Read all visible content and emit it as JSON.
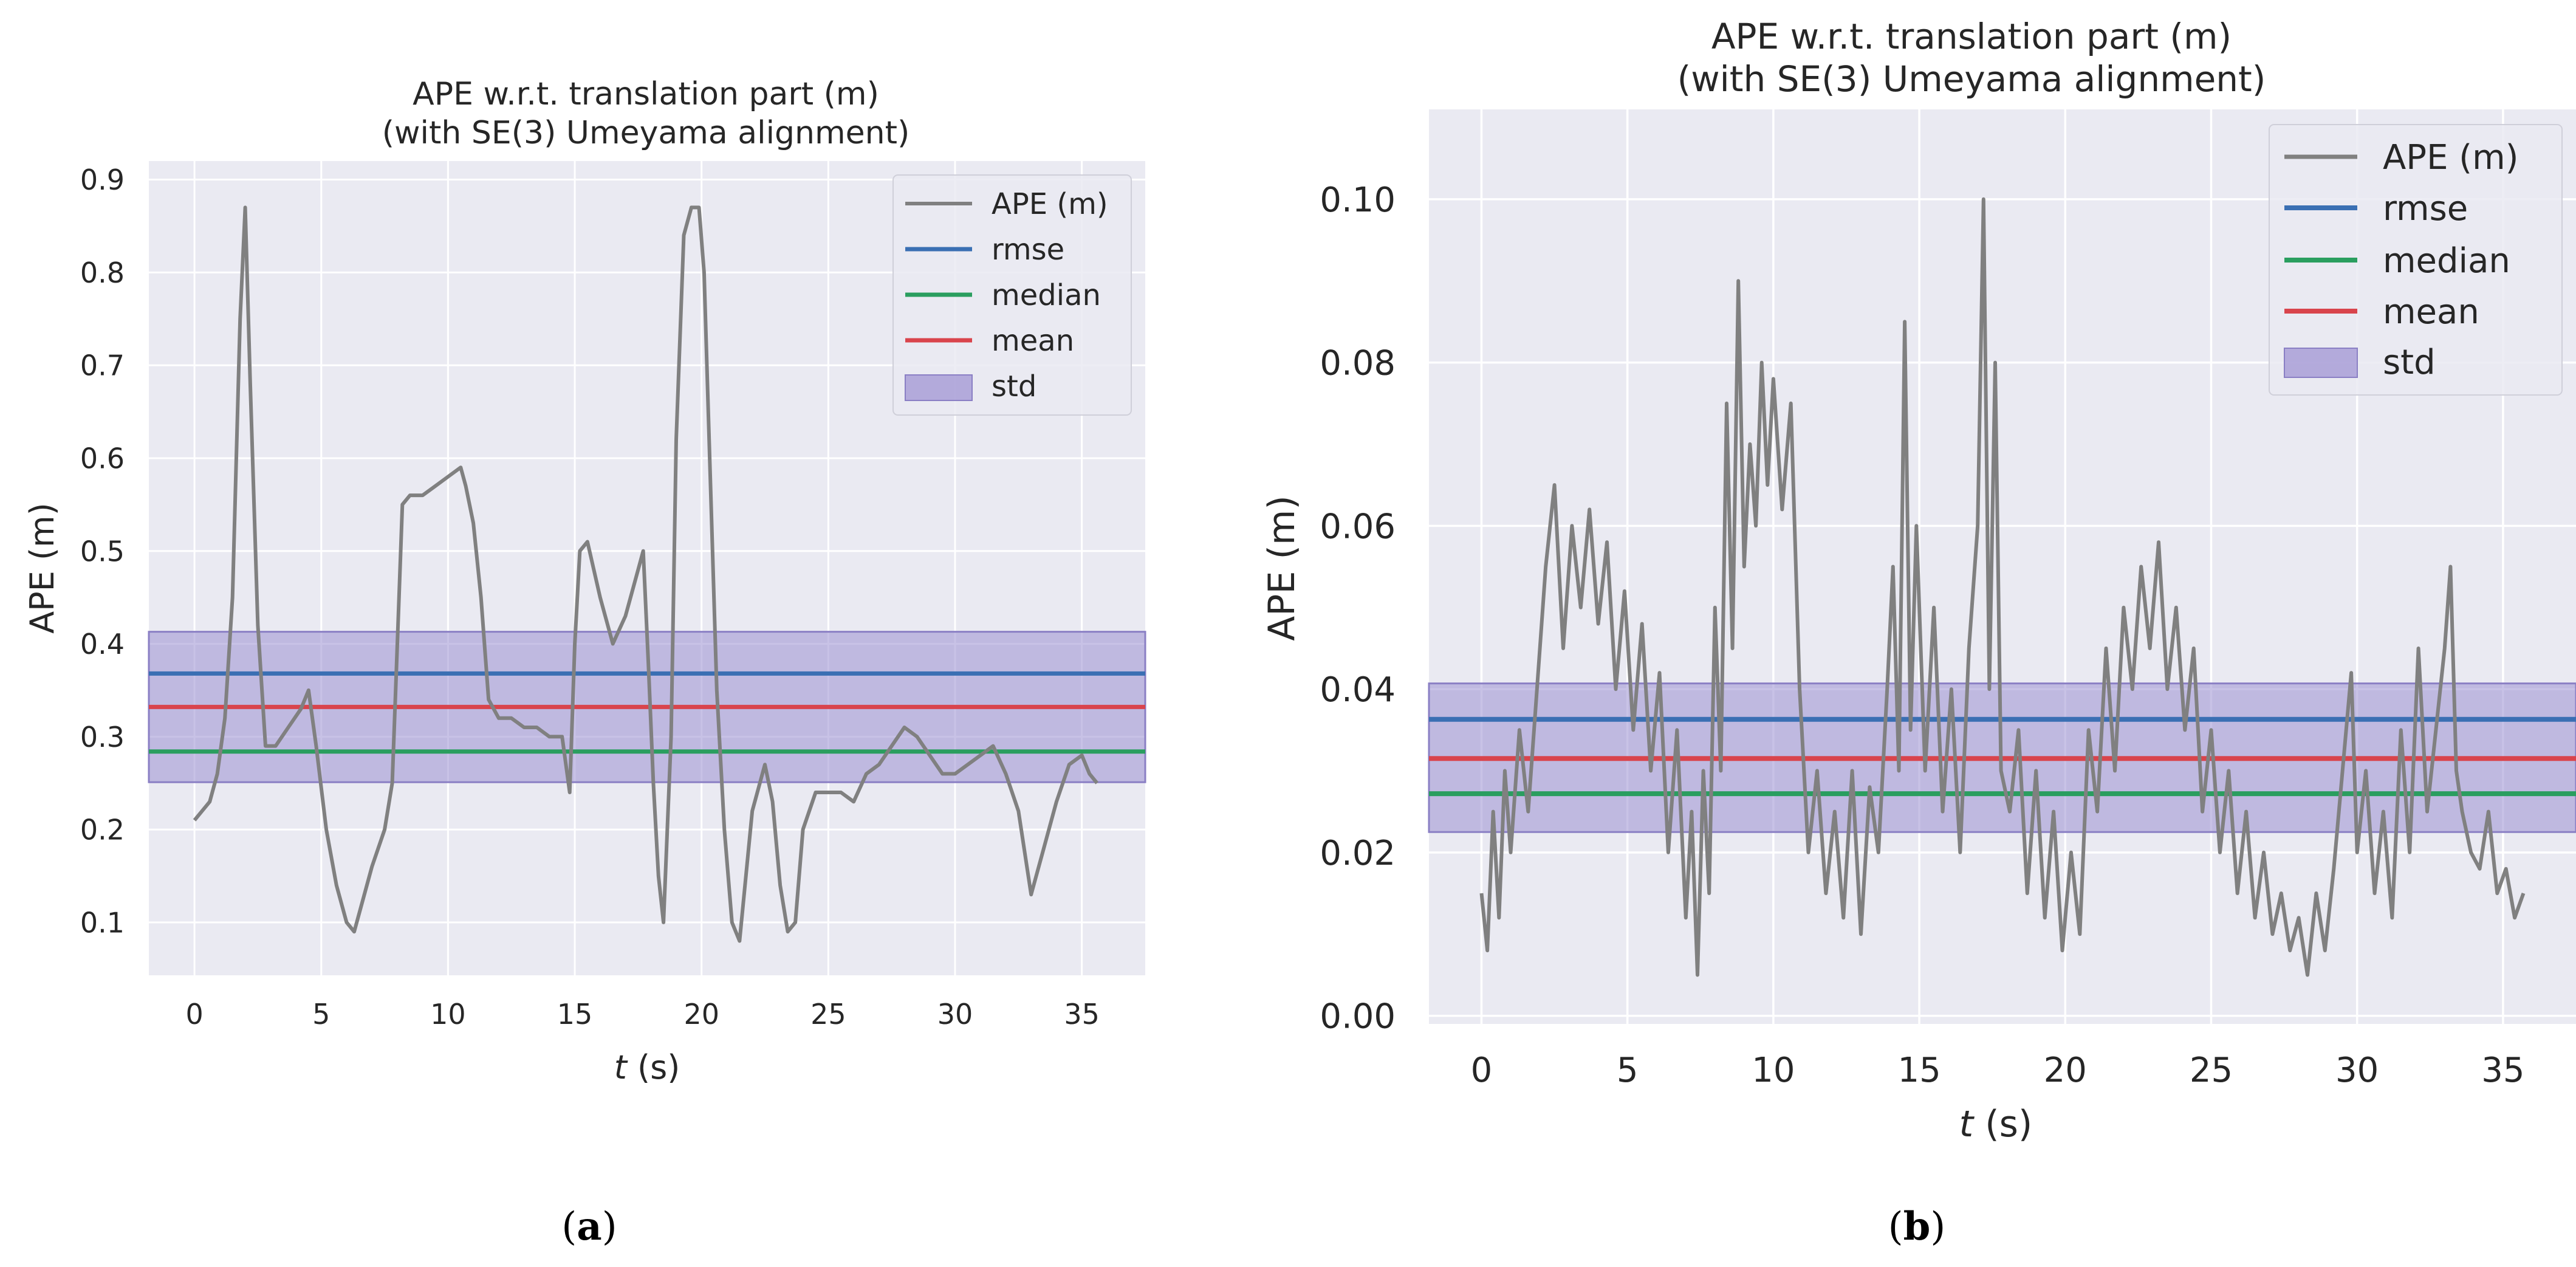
{
  "chart_data": [
    {
      "type": "line",
      "panel_label": "a",
      "title": "APE w.r.t. translation part (m)",
      "subtitle": "(with SE(3) Umeyama alignment)",
      "xlabel_italic": "t",
      "xlabel_rest": " (s)",
      "ylabel": "APE (m)",
      "xlim": [
        -1.8,
        37.5
      ],
      "ylim": [
        0.043,
        0.92
      ],
      "xticks": [
        0,
        5,
        10,
        15,
        20,
        25,
        30,
        35
      ],
      "yticks": [
        0.1,
        0.2,
        0.3,
        0.4,
        0.5,
        0.6,
        0.7,
        0.8,
        0.9
      ],
      "ytick_labels": [
        "0.1",
        "0.2",
        "0.3",
        "0.4",
        "0.5",
        "0.6",
        "0.7",
        "0.8",
        "0.9"
      ],
      "grid": true,
      "legend_position": "top-right",
      "stats": {
        "rmse": 0.368,
        "median": 0.284,
        "mean": 0.332,
        "std_low": 0.251,
        "std_high": 0.413
      },
      "series": [
        {
          "name": "APE (m)",
          "color": "#808080",
          "x": [
            0,
            0.3,
            0.6,
            0.9,
            1.2,
            1.5,
            1.8,
            2.0,
            2.2,
            2.5,
            2.8,
            3.2,
            3.7,
            4.2,
            4.5,
            4.8,
            5.2,
            5.6,
            6.0,
            6.3,
            6.7,
            7.0,
            7.5,
            7.8,
            8.0,
            8.2,
            8.5,
            9.0,
            9.5,
            10.0,
            10.5,
            10.7,
            11.0,
            11.3,
            11.6,
            12.0,
            12.5,
            13.0,
            13.5,
            14.0,
            14.5,
            14.8,
            15.0,
            15.2,
            15.5,
            16.0,
            16.5,
            17.0,
            17.5,
            17.7,
            17.9,
            18.1,
            18.3,
            18.5,
            18.8,
            19.0,
            19.3,
            19.6,
            19.9,
            20.1,
            20.3,
            20.6,
            20.9,
            21.2,
            21.5,
            22.0,
            22.5,
            22.8,
            23.1,
            23.4,
            23.7,
            24.0,
            24.5,
            25.0,
            25.5,
            26.0,
            26.5,
            27.0,
            27.5,
            28.0,
            28.5,
            29.0,
            29.5,
            30.0,
            30.5,
            31.0,
            31.5,
            32.0,
            32.5,
            33.0,
            33.5,
            34.0,
            34.5,
            35.0,
            35.3,
            35.6
          ],
          "values": [
            0.21,
            0.22,
            0.23,
            0.26,
            0.32,
            0.45,
            0.75,
            0.87,
            0.68,
            0.42,
            0.29,
            0.29,
            0.31,
            0.33,
            0.35,
            0.29,
            0.2,
            0.14,
            0.1,
            0.09,
            0.13,
            0.16,
            0.2,
            0.25,
            0.4,
            0.55,
            0.56,
            0.56,
            0.57,
            0.58,
            0.59,
            0.57,
            0.53,
            0.45,
            0.34,
            0.32,
            0.32,
            0.31,
            0.31,
            0.3,
            0.3,
            0.24,
            0.4,
            0.5,
            0.51,
            0.45,
            0.4,
            0.43,
            0.48,
            0.5,
            0.38,
            0.25,
            0.15,
            0.1,
            0.3,
            0.62,
            0.84,
            0.87,
            0.87,
            0.8,
            0.62,
            0.35,
            0.2,
            0.1,
            0.08,
            0.22,
            0.27,
            0.23,
            0.14,
            0.09,
            0.1,
            0.2,
            0.24,
            0.24,
            0.24,
            0.23,
            0.26,
            0.27,
            0.29,
            0.31,
            0.3,
            0.28,
            0.26,
            0.26,
            0.27,
            0.28,
            0.29,
            0.26,
            0.22,
            0.13,
            0.18,
            0.23,
            0.27,
            0.28,
            0.26,
            0.25
          ]
        },
        {
          "name": "rmse",
          "color": "#3a6fb3"
        },
        {
          "name": "median",
          "color": "#2a9e5f"
        },
        {
          "name": "mean",
          "color": "#d9444c"
        },
        {
          "name": "std",
          "color": "#9b8fd1"
        }
      ]
    },
    {
      "type": "line",
      "panel_label": "b",
      "title": "APE w.r.t. translation part (m)",
      "subtitle": "(with SE(3) Umeyama alignment)",
      "xlabel_italic": "t",
      "xlabel_rest": " (s)",
      "ylabel": "APE (m)",
      "xlim": [
        -1.8,
        37.5
      ],
      "ylim": [
        -0.001,
        0.111
      ],
      "xticks": [
        0,
        5,
        10,
        15,
        20,
        25,
        30,
        35
      ],
      "yticks": [
        0.0,
        0.02,
        0.04,
        0.06,
        0.08,
        0.1
      ],
      "ytick_labels": [
        "0.00",
        "0.02",
        "0.04",
        "0.06",
        "0.08",
        "0.10"
      ],
      "grid": true,
      "legend_position": "top-right",
      "stats": {
        "rmse": 0.0363,
        "median": 0.0272,
        "mean": 0.0315,
        "std_low": 0.0225,
        "std_high": 0.0407
      },
      "series": [
        {
          "name": "APE (m)",
          "color": "#808080",
          "x": [
            0,
            0.2,
            0.4,
            0.6,
            0.8,
            1.0,
            1.3,
            1.6,
            1.9,
            2.2,
            2.5,
            2.8,
            3.1,
            3.4,
            3.7,
            4.0,
            4.3,
            4.6,
            4.9,
            5.2,
            5.5,
            5.8,
            6.1,
            6.4,
            6.7,
            7.0,
            7.2,
            7.4,
            7.6,
            7.8,
            8.0,
            8.2,
            8.4,
            8.6,
            8.8,
            9.0,
            9.2,
            9.4,
            9.6,
            9.8,
            10.0,
            10.3,
            10.6,
            10.9,
            11.2,
            11.5,
            11.8,
            12.1,
            12.4,
            12.7,
            13.0,
            13.3,
            13.6,
            13.9,
            14.1,
            14.3,
            14.5,
            14.7,
            14.9,
            15.2,
            15.5,
            15.8,
            16.1,
            16.4,
            16.7,
            17.0,
            17.2,
            17.4,
            17.6,
            17.8,
            18.1,
            18.4,
            18.7,
            19.0,
            19.3,
            19.6,
            19.9,
            20.2,
            20.5,
            20.8,
            21.1,
            21.4,
            21.7,
            22.0,
            22.3,
            22.6,
            22.9,
            23.2,
            23.5,
            23.8,
            24.1,
            24.4,
            24.7,
            25.0,
            25.3,
            25.6,
            25.9,
            26.2,
            26.5,
            26.8,
            27.1,
            27.4,
            27.7,
            28.0,
            28.3,
            28.6,
            28.9,
            29.2,
            29.5,
            29.8,
            30.0,
            30.3,
            30.6,
            30.9,
            31.2,
            31.5,
            31.8,
            32.1,
            32.4,
            32.7,
            33.0,
            33.2,
            33.4,
            33.6,
            33.9,
            34.2,
            34.5,
            34.8,
            35.1,
            35.4,
            35.7
          ],
          "values": [
            0.015,
            0.008,
            0.025,
            0.012,
            0.03,
            0.02,
            0.035,
            0.025,
            0.04,
            0.055,
            0.065,
            0.045,
            0.06,
            0.05,
            0.062,
            0.048,
            0.058,
            0.04,
            0.052,
            0.035,
            0.048,
            0.03,
            0.042,
            0.02,
            0.035,
            0.012,
            0.025,
            0.005,
            0.03,
            0.015,
            0.05,
            0.03,
            0.075,
            0.045,
            0.09,
            0.055,
            0.07,
            0.06,
            0.08,
            0.065,
            0.078,
            0.062,
            0.075,
            0.04,
            0.02,
            0.03,
            0.015,
            0.025,
            0.012,
            0.03,
            0.01,
            0.028,
            0.02,
            0.04,
            0.055,
            0.03,
            0.085,
            0.035,
            0.06,
            0.03,
            0.05,
            0.025,
            0.04,
            0.02,
            0.045,
            0.06,
            0.1,
            0.04,
            0.08,
            0.03,
            0.025,
            0.035,
            0.015,
            0.03,
            0.012,
            0.025,
            0.008,
            0.02,
            0.01,
            0.035,
            0.025,
            0.045,
            0.03,
            0.05,
            0.04,
            0.055,
            0.045,
            0.058,
            0.04,
            0.05,
            0.035,
            0.045,
            0.025,
            0.035,
            0.02,
            0.03,
            0.015,
            0.025,
            0.012,
            0.02,
            0.01,
            0.015,
            0.008,
            0.012,
            0.005,
            0.015,
            0.008,
            0.018,
            0.03,
            0.042,
            0.02,
            0.03,
            0.015,
            0.025,
            0.012,
            0.035,
            0.02,
            0.045,
            0.025,
            0.035,
            0.045,
            0.055,
            0.03,
            0.025,
            0.02,
            0.018,
            0.025,
            0.015,
            0.018,
            0.012,
            0.015
          ]
        },
        {
          "name": "rmse",
          "color": "#3a6fb3"
        },
        {
          "name": "median",
          "color": "#2a9e5f"
        },
        {
          "name": "mean",
          "color": "#d9444c"
        },
        {
          "name": "std",
          "color": "#9b8fd1"
        }
      ]
    }
  ]
}
